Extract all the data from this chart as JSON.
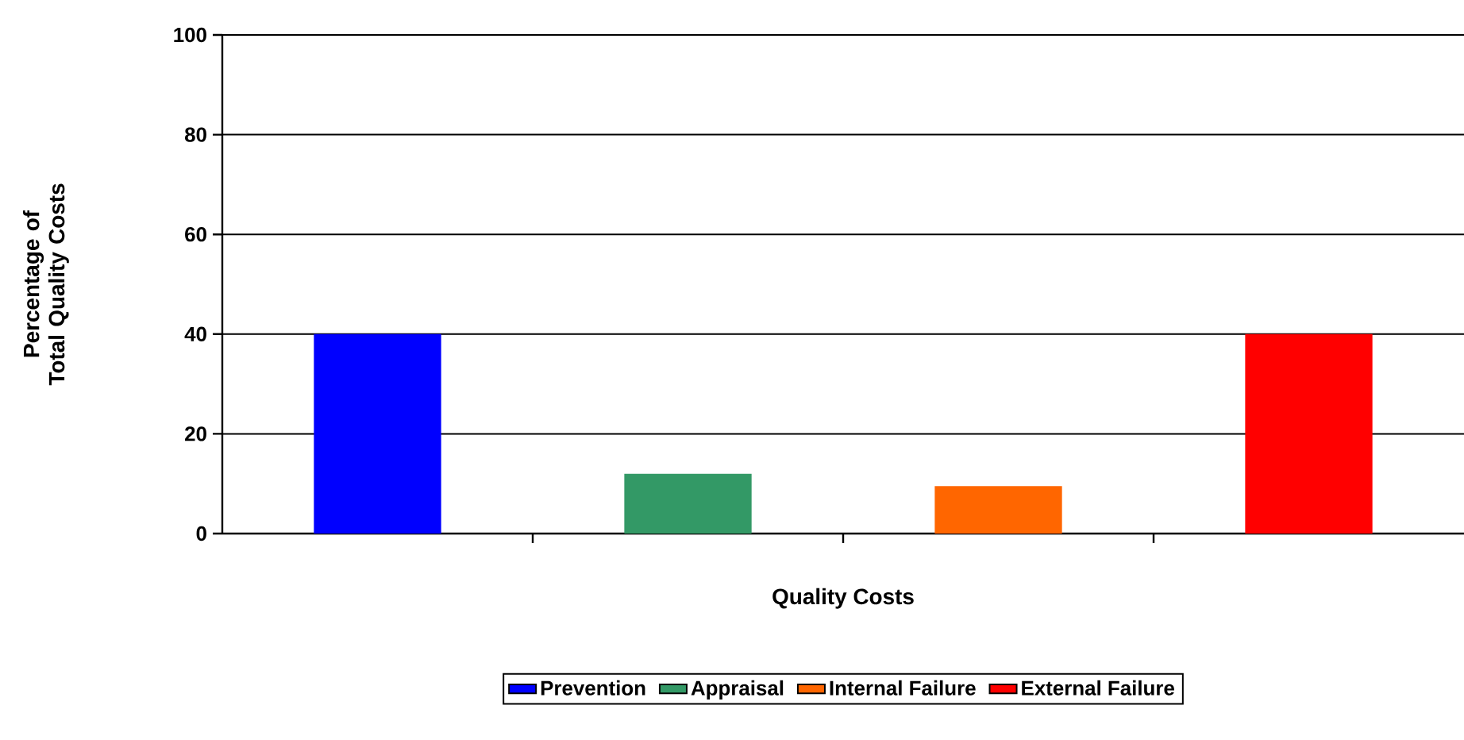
{
  "chart_data": {
    "type": "bar",
    "xlabel": "Quality Costs",
    "ylabel": "Percentage of Total Quality Costs",
    "categories": [
      null,
      null,
      null,
      null
    ],
    "series": [
      {
        "name": "Prevention",
        "color": "#0000ff",
        "values": [
          40,
          null,
          null,
          null
        ]
      },
      {
        "name": "Appraisal",
        "color": "#339966",
        "values": [
          null,
          12,
          null,
          null
        ]
      },
      {
        "name": "Internal Failure",
        "color": "#ff6600",
        "values": [
          null,
          null,
          9.5,
          null
        ]
      },
      {
        "name": "External Failure",
        "color": "#ff0000",
        "values": [
          null,
          null,
          null,
          40
        ]
      }
    ],
    "ylim": [
      0,
      100
    ],
    "yticks": [
      0,
      20,
      40,
      60,
      80,
      100
    ],
    "grid": "y",
    "legend": "bottom"
  }
}
